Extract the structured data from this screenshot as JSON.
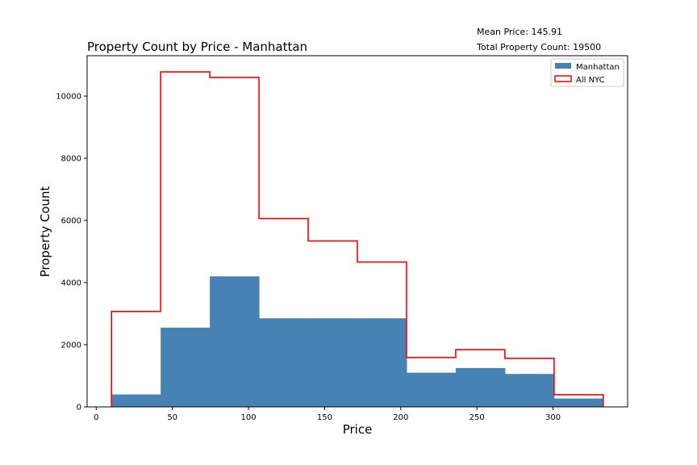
{
  "annotations": {
    "mean_price": "Mean Price: 145.91",
    "total_count": "Total Property Count: 19500"
  },
  "chart_data": {
    "type": "bar",
    "title": "Property Count by Price - Manhattan",
    "xlabel": "Price",
    "ylabel": "Property Count",
    "xlim": [
      -6,
      349
    ],
    "ylim": [
      0,
      11300
    ],
    "xticks": [
      0,
      50,
      100,
      150,
      200,
      250,
      300
    ],
    "yticks": [
      0,
      2000,
      4000,
      6000,
      8000,
      10000
    ],
    "bin_edges": [
      10,
      42.3,
      74.6,
      106.9,
      139.2,
      171.5,
      203.8,
      236.1,
      268.4,
      300.7,
      333
    ],
    "series": [
      {
        "name": "Manhattan",
        "style": "filled",
        "color": "#4682b4",
        "values": [
          400,
          2550,
          4200,
          2850,
          2850,
          2850,
          1100,
          1250,
          1060,
          270
        ]
      },
      {
        "name": "All NYC",
        "style": "step",
        "color": "#ff0000",
        "values": [
          3070,
          10780,
          10600,
          6060,
          5340,
          4660,
          1590,
          1840,
          1560,
          390
        ]
      }
    ],
    "legend_position": "top-right",
    "grid": false
  }
}
